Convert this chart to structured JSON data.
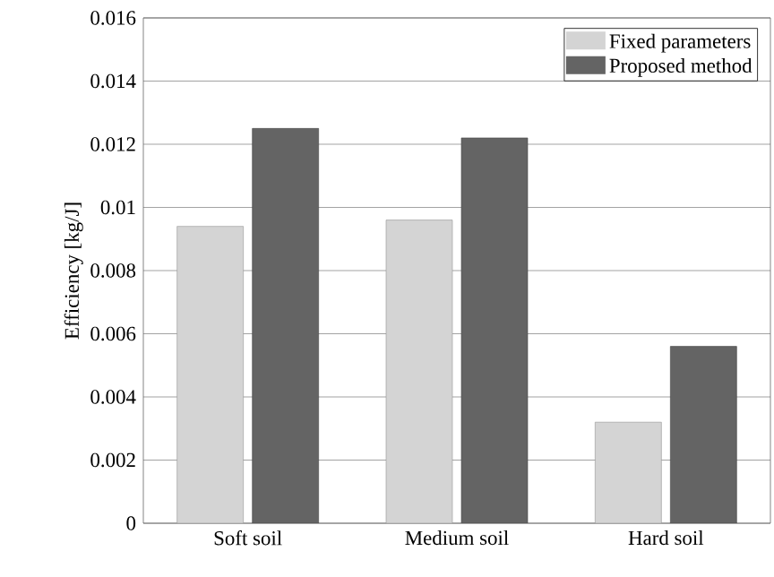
{
  "chart_data": {
    "type": "bar",
    "ylabel": "Efficiency [kg/J]",
    "categories": [
      "Soft soil",
      "Medium soil",
      "Hard soil"
    ],
    "series": [
      {
        "name": "Fixed parameters",
        "color": "#d4d4d4",
        "values": [
          0.0094,
          0.0096,
          0.0032
        ]
      },
      {
        "name": "Proposed method",
        "color": "#646464",
        "values": [
          0.0125,
          0.0122,
          0.0056
        ]
      }
    ],
    "ylim": [
      0,
      0.016
    ],
    "yticks": [
      0,
      0.002,
      0.004,
      0.006,
      0.008,
      0.01,
      0.012,
      0.014,
      0.016
    ],
    "grid": "y",
    "legend": "top right"
  }
}
